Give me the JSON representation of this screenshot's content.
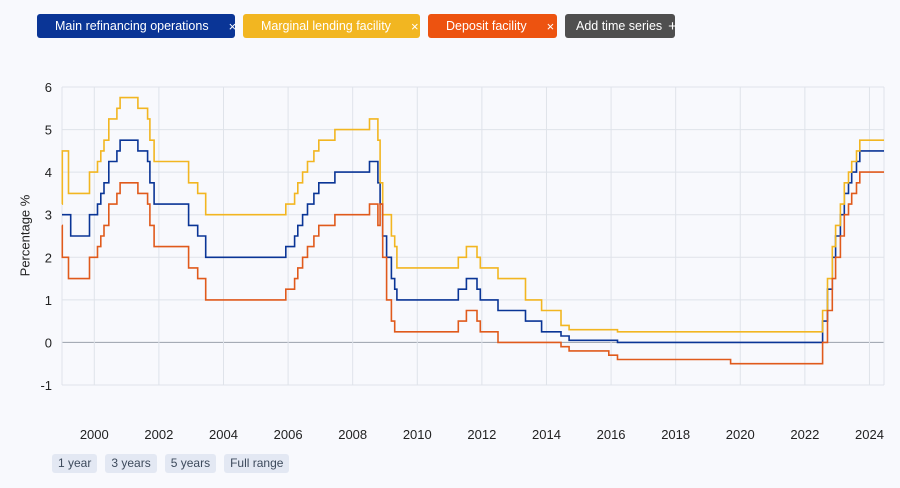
{
  "chips": [
    {
      "label": "Main refinancing operations",
      "close": "×"
    },
    {
      "label": "Marginal lending facility",
      "close": "×"
    },
    {
      "label": "Deposit facility",
      "close": "×"
    },
    {
      "label": "Add time series",
      "close": "+"
    }
  ],
  "range_buttons": [
    "1 year",
    "3 years",
    "5 years",
    "Full range"
  ],
  "chart_data": {
    "type": "line",
    "ylabel": "Percentage %",
    "ylim": [
      -1,
      6
    ],
    "yticks": [
      -1,
      0,
      1,
      2,
      3,
      4,
      5,
      6
    ],
    "xlim": [
      1999.0,
      2024.45
    ],
    "xticks": [
      2000,
      2002,
      2004,
      2006,
      2008,
      2010,
      2012,
      2014,
      2016,
      2018,
      2020,
      2022,
      2024
    ],
    "grid": true,
    "series": [
      {
        "name": "Main refinancing operations",
        "color": "#0a3596",
        "steps": [
          [
            1999.0,
            3.0
          ],
          [
            1999.27,
            2.5
          ],
          [
            1999.85,
            3.0
          ],
          [
            2000.1,
            3.25
          ],
          [
            2000.2,
            3.5
          ],
          [
            2000.3,
            3.75
          ],
          [
            2000.45,
            4.25
          ],
          [
            2000.7,
            4.5
          ],
          [
            2000.8,
            4.75
          ],
          [
            2001.35,
            4.5
          ],
          [
            2001.65,
            4.25
          ],
          [
            2001.72,
            3.75
          ],
          [
            2001.85,
            3.25
          ],
          [
            2002.92,
            2.75
          ],
          [
            2003.2,
            2.5
          ],
          [
            2003.45,
            2.0
          ],
          [
            2005.93,
            2.25
          ],
          [
            2006.2,
            2.5
          ],
          [
            2006.3,
            2.75
          ],
          [
            2006.45,
            3.0
          ],
          [
            2006.6,
            3.25
          ],
          [
            2006.8,
            3.5
          ],
          [
            2006.95,
            3.75
          ],
          [
            2007.45,
            4.0
          ],
          [
            2008.52,
            4.25
          ],
          [
            2008.78,
            3.75
          ],
          [
            2008.85,
            3.25
          ],
          [
            2008.93,
            2.5
          ],
          [
            2009.05,
            2.0
          ],
          [
            2009.2,
            1.5
          ],
          [
            2009.3,
            1.25
          ],
          [
            2009.37,
            1.0
          ],
          [
            2011.27,
            1.25
          ],
          [
            2011.52,
            1.5
          ],
          [
            2011.85,
            1.25
          ],
          [
            2011.95,
            1.0
          ],
          [
            2012.5,
            0.75
          ],
          [
            2013.35,
            0.5
          ],
          [
            2013.85,
            0.25
          ],
          [
            2014.45,
            0.15
          ],
          [
            2014.7,
            0.05
          ],
          [
            2016.2,
            0.0
          ],
          [
            2022.55,
            0.5
          ],
          [
            2022.7,
            1.25
          ],
          [
            2022.85,
            2.0
          ],
          [
            2022.95,
            2.5
          ],
          [
            2023.1,
            3.0
          ],
          [
            2023.22,
            3.5
          ],
          [
            2023.35,
            3.75
          ],
          [
            2023.45,
            4.0
          ],
          [
            2023.6,
            4.25
          ],
          [
            2023.7,
            4.5
          ],
          [
            2024.45,
            4.5
          ]
        ]
      },
      {
        "name": "Marginal lending facility",
        "color": "#f2b621",
        "steps": [
          [
            1999.0,
            3.25
          ],
          [
            1999.01,
            4.5
          ],
          [
            1999.2,
            3.5
          ],
          [
            1999.85,
            4.0
          ],
          [
            2000.1,
            4.25
          ],
          [
            2000.2,
            4.5
          ],
          [
            2000.3,
            4.75
          ],
          [
            2000.45,
            5.25
          ],
          [
            2000.7,
            5.5
          ],
          [
            2000.8,
            5.75
          ],
          [
            2001.35,
            5.5
          ],
          [
            2001.65,
            5.25
          ],
          [
            2001.72,
            4.75
          ],
          [
            2001.85,
            4.25
          ],
          [
            2002.92,
            3.75
          ],
          [
            2003.2,
            3.5
          ],
          [
            2003.45,
            3.0
          ],
          [
            2005.93,
            3.25
          ],
          [
            2006.2,
            3.5
          ],
          [
            2006.3,
            3.75
          ],
          [
            2006.45,
            4.0
          ],
          [
            2006.6,
            4.25
          ],
          [
            2006.8,
            4.5
          ],
          [
            2006.95,
            4.75
          ],
          [
            2007.45,
            5.0
          ],
          [
            2008.52,
            5.25
          ],
          [
            2008.78,
            4.75
          ],
          [
            2008.85,
            3.75
          ],
          [
            2008.93,
            3.0
          ],
          [
            2009.05,
            3.0
          ],
          [
            2009.2,
            2.5
          ],
          [
            2009.3,
            2.25
          ],
          [
            2009.37,
            1.75
          ],
          [
            2011.27,
            2.0
          ],
          [
            2011.52,
            2.25
          ],
          [
            2011.85,
            2.0
          ],
          [
            2011.95,
            1.75
          ],
          [
            2012.5,
            1.5
          ],
          [
            2013.35,
            1.0
          ],
          [
            2013.85,
            0.75
          ],
          [
            2014.45,
            0.4
          ],
          [
            2014.7,
            0.3
          ],
          [
            2016.2,
            0.25
          ],
          [
            2022.55,
            0.75
          ],
          [
            2022.7,
            1.5
          ],
          [
            2022.85,
            2.25
          ],
          [
            2022.95,
            2.75
          ],
          [
            2023.1,
            3.25
          ],
          [
            2023.22,
            3.75
          ],
          [
            2023.35,
            4.0
          ],
          [
            2023.45,
            4.25
          ],
          [
            2023.6,
            4.5
          ],
          [
            2023.7,
            4.75
          ],
          [
            2024.45,
            4.75
          ]
        ]
      },
      {
        "name": "Deposit facility",
        "color": "#e05a1c",
        "steps": [
          [
            1999.0,
            2.75
          ],
          [
            1999.01,
            2.0
          ],
          [
            1999.2,
            1.5
          ],
          [
            1999.85,
            2.0
          ],
          [
            2000.1,
            2.25
          ],
          [
            2000.2,
            2.5
          ],
          [
            2000.3,
            2.75
          ],
          [
            2000.45,
            3.25
          ],
          [
            2000.7,
            3.5
          ],
          [
            2000.8,
            3.75
          ],
          [
            2001.35,
            3.5
          ],
          [
            2001.65,
            3.25
          ],
          [
            2001.72,
            2.75
          ],
          [
            2001.85,
            2.25
          ],
          [
            2002.92,
            1.75
          ],
          [
            2003.2,
            1.5
          ],
          [
            2003.45,
            1.0
          ],
          [
            2005.93,
            1.25
          ],
          [
            2006.2,
            1.5
          ],
          [
            2006.3,
            1.75
          ],
          [
            2006.45,
            2.0
          ],
          [
            2006.6,
            2.25
          ],
          [
            2006.8,
            2.5
          ],
          [
            2006.95,
            2.75
          ],
          [
            2007.45,
            3.0
          ],
          [
            2008.52,
            3.25
          ],
          [
            2008.78,
            2.75
          ],
          [
            2008.85,
            3.25
          ],
          [
            2008.93,
            2.0
          ],
          [
            2009.05,
            1.0
          ],
          [
            2009.2,
            0.5
          ],
          [
            2009.3,
            0.25
          ],
          [
            2011.27,
            0.5
          ],
          [
            2011.52,
            0.75
          ],
          [
            2011.85,
            0.5
          ],
          [
            2011.95,
            0.25
          ],
          [
            2012.5,
            0.0
          ],
          [
            2014.45,
            -0.1
          ],
          [
            2014.7,
            -0.2
          ],
          [
            2015.93,
            -0.3
          ],
          [
            2016.2,
            -0.4
          ],
          [
            2019.7,
            -0.5
          ],
          [
            2022.55,
            0.0
          ],
          [
            2022.7,
            0.75
          ],
          [
            2022.85,
            1.5
          ],
          [
            2022.95,
            2.0
          ],
          [
            2023.1,
            2.5
          ],
          [
            2023.22,
            3.0
          ],
          [
            2023.35,
            3.25
          ],
          [
            2023.45,
            3.5
          ],
          [
            2023.6,
            3.75
          ],
          [
            2023.7,
            4.0
          ],
          [
            2024.45,
            4.0
          ]
        ]
      }
    ]
  }
}
